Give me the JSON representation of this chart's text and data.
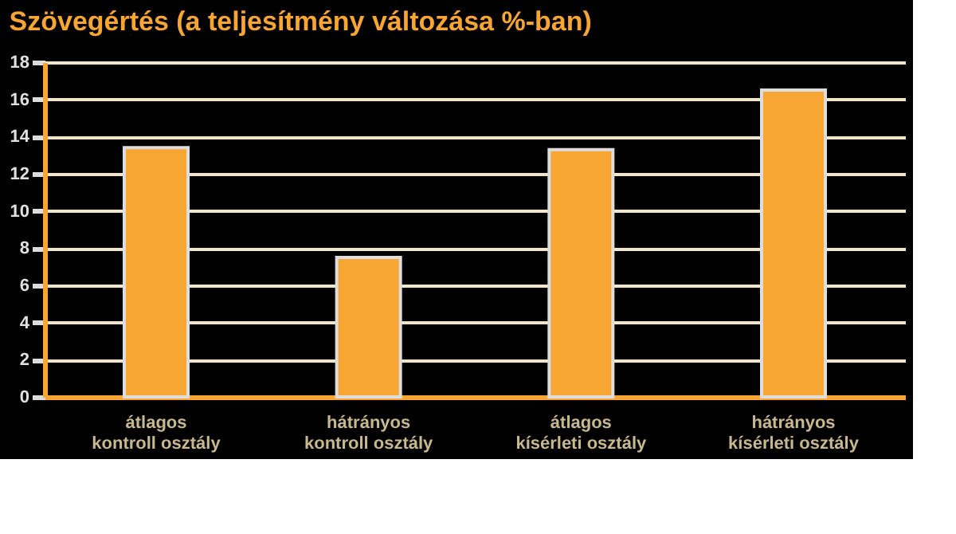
{
  "chart_data": {
    "type": "bar",
    "title": "Szövegértés  (a teljesítmény változása %-ban)",
    "categories": [
      [
        "átlagos",
        "kontroll osztály"
      ],
      [
        "hátrányos",
        "kontroll osztály"
      ],
      [
        "átlagos",
        "kísérleti osztály"
      ],
      [
        "hátrányos",
        "kísérleti osztály"
      ]
    ],
    "values": [
      13.4,
      7.5,
      13.3,
      16.5
    ],
    "color": "#f7a533",
    "ylim": [
      0,
      18
    ],
    "yticks": [
      0,
      2,
      4,
      6,
      8,
      10,
      12,
      14,
      16,
      18
    ],
    "grid": "y"
  }
}
